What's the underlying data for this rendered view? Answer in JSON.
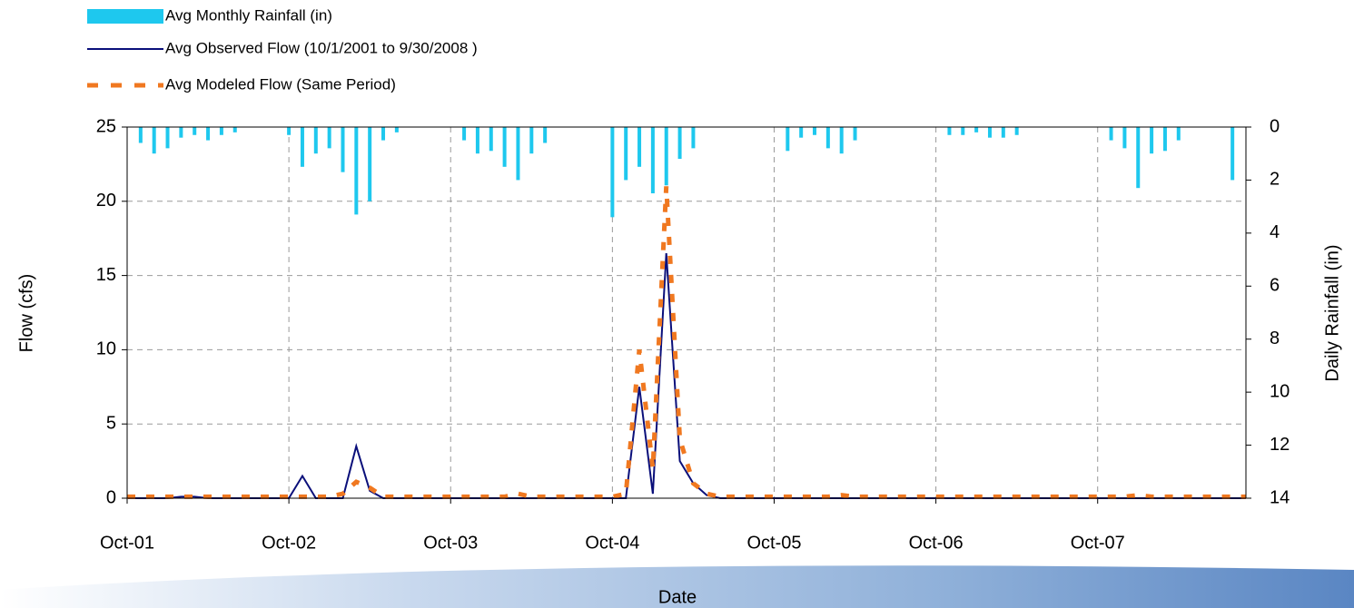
{
  "chart_data": {
    "type": "combo",
    "x_label": "Date",
    "y_label": "Flow (cfs)",
    "y2_label": "Daily Rainfall (in)",
    "x": [
      "2001-10",
      "2001-11",
      "2001-12",
      "2002-01",
      "2002-02",
      "2002-03",
      "2002-04",
      "2002-05",
      "2002-06",
      "2002-07",
      "2002-08",
      "2002-09",
      "2002-10",
      "2002-11",
      "2002-12",
      "2003-01",
      "2003-02",
      "2003-03",
      "2003-04",
      "2003-05",
      "2003-06",
      "2003-07",
      "2003-08",
      "2003-09",
      "2003-10",
      "2003-11",
      "2003-12",
      "2004-01",
      "2004-02",
      "2004-03",
      "2004-04",
      "2004-05",
      "2004-06",
      "2004-07",
      "2004-08",
      "2004-09",
      "2004-10",
      "2004-11",
      "2004-12",
      "2005-01",
      "2005-02",
      "2005-03",
      "2005-04",
      "2005-05",
      "2005-06",
      "2005-07",
      "2005-08",
      "2005-09",
      "2005-10",
      "2005-11",
      "2005-12",
      "2006-01",
      "2006-02",
      "2006-03",
      "2006-04",
      "2006-05",
      "2006-06",
      "2006-07",
      "2006-08",
      "2006-09",
      "2006-10",
      "2006-11",
      "2006-12",
      "2007-01",
      "2007-02",
      "2007-03",
      "2007-04",
      "2007-05",
      "2007-06",
      "2007-07",
      "2007-08",
      "2007-09",
      "2007-10",
      "2007-11",
      "2007-12",
      "2008-01",
      "2008-02",
      "2008-03",
      "2008-04",
      "2008-05",
      "2008-06",
      "2008-07",
      "2008-08",
      "2008-09"
    ],
    "series": [
      {
        "name": "Avg Monthly Rainfall (in)",
        "type": "bar",
        "axis": "y2",
        "color": "#1ec8ee",
        "values": [
          0,
          0.6,
          1,
          0.8,
          0.4,
          0.3,
          0.5,
          0.3,
          0.2,
          0,
          0,
          0,
          0.3,
          1.5,
          1,
          0.8,
          1.7,
          3.3,
          2.8,
          0.5,
          0.2,
          0,
          0,
          0,
          0,
          0.5,
          1,
          0.9,
          1.5,
          2,
          1,
          0.6,
          0,
          0,
          0,
          0,
          3.4,
          2,
          1.5,
          2.5,
          2.2,
          1.2,
          0.8,
          0,
          0,
          0,
          0,
          0,
          0,
          0.9,
          0.4,
          0.3,
          0.8,
          1,
          0.5,
          0,
          0,
          0,
          0,
          0,
          0,
          0.3,
          0.3,
          0.2,
          0.4,
          0.4,
          0.3,
          0,
          0,
          0,
          0,
          0,
          0,
          0.5,
          0.8,
          2.3,
          1,
          0.9,
          0.5,
          0,
          0,
          0,
          2,
          0
        ]
      },
      {
        "name": "Avg Observed Flow (10/1/2001 to 9/30/2008 )",
        "type": "line",
        "color": "#0a0f7a",
        "dash": false,
        "values": [
          0,
          0,
          0,
          0,
          0.1,
          0.1,
          0,
          0,
          0,
          0,
          0,
          0,
          0,
          1.5,
          0,
          0,
          0,
          3.5,
          0.5,
          0,
          0,
          0,
          0,
          0,
          0,
          0,
          0,
          0,
          0,
          0,
          0,
          0,
          0,
          0,
          0,
          0,
          0,
          0,
          7.5,
          0.3,
          16.5,
          2.5,
          1,
          0.2,
          0,
          0,
          0,
          0,
          0,
          0,
          0,
          0,
          0,
          0,
          0,
          0,
          0,
          0,
          0,
          0,
          0,
          0,
          0,
          0,
          0,
          0,
          0,
          0,
          0,
          0,
          0,
          0,
          0,
          0,
          0,
          0,
          0,
          0,
          0,
          0,
          0,
          0,
          0,
          0
        ]
      },
      {
        "name": "Avg Modeled Flow (Same Period)",
        "type": "line",
        "color": "#f07820",
        "dash": true,
        "values": [
          0.1,
          0.1,
          0.1,
          0.1,
          0.1,
          0.1,
          0.1,
          0.1,
          0.1,
          0.1,
          0.1,
          0.1,
          0.1,
          0.1,
          0.1,
          0.1,
          0.3,
          1.1,
          0.7,
          0.1,
          0.1,
          0.1,
          0.1,
          0.1,
          0.1,
          0.1,
          0.1,
          0.1,
          0.1,
          0.3,
          0.1,
          0.1,
          0.1,
          0.1,
          0.1,
          0.1,
          0.1,
          0.3,
          10,
          2,
          21,
          4,
          1,
          0.3,
          0.1,
          0.1,
          0.1,
          0.1,
          0.1,
          0.1,
          0.1,
          0.1,
          0.1,
          0.2,
          0.1,
          0.1,
          0.1,
          0.1,
          0.1,
          0.1,
          0.1,
          0.1,
          0.1,
          0.1,
          0.1,
          0.1,
          0.1,
          0.1,
          0.1,
          0.1,
          0.1,
          0.1,
          0.1,
          0.1,
          0.1,
          0.2,
          0.1,
          0.1,
          0.1,
          0.1,
          0.1,
          0.1,
          0.1,
          0.1
        ]
      }
    ],
    "xlim": [
      "2001-10",
      "2008-09"
    ],
    "xticks": [
      {
        "value": "2001-10",
        "label": "Oct-01"
      },
      {
        "value": "2002-10",
        "label": "Oct-02"
      },
      {
        "value": "2003-10",
        "label": "Oct-03"
      },
      {
        "value": "2004-10",
        "label": "Oct-04"
      },
      {
        "value": "2005-10",
        "label": "Oct-05"
      },
      {
        "value": "2006-10",
        "label": "Oct-06"
      },
      {
        "value": "2007-10",
        "label": "Oct-07"
      }
    ],
    "ylim": [
      0,
      25
    ],
    "yticks": [
      0,
      5,
      10,
      15,
      20,
      25
    ],
    "y2lim": [
      0,
      14
    ],
    "y2ticks": [
      0,
      2,
      4,
      6,
      8,
      10,
      12,
      14
    ],
    "y2_inverted": true,
    "grid": true
  }
}
